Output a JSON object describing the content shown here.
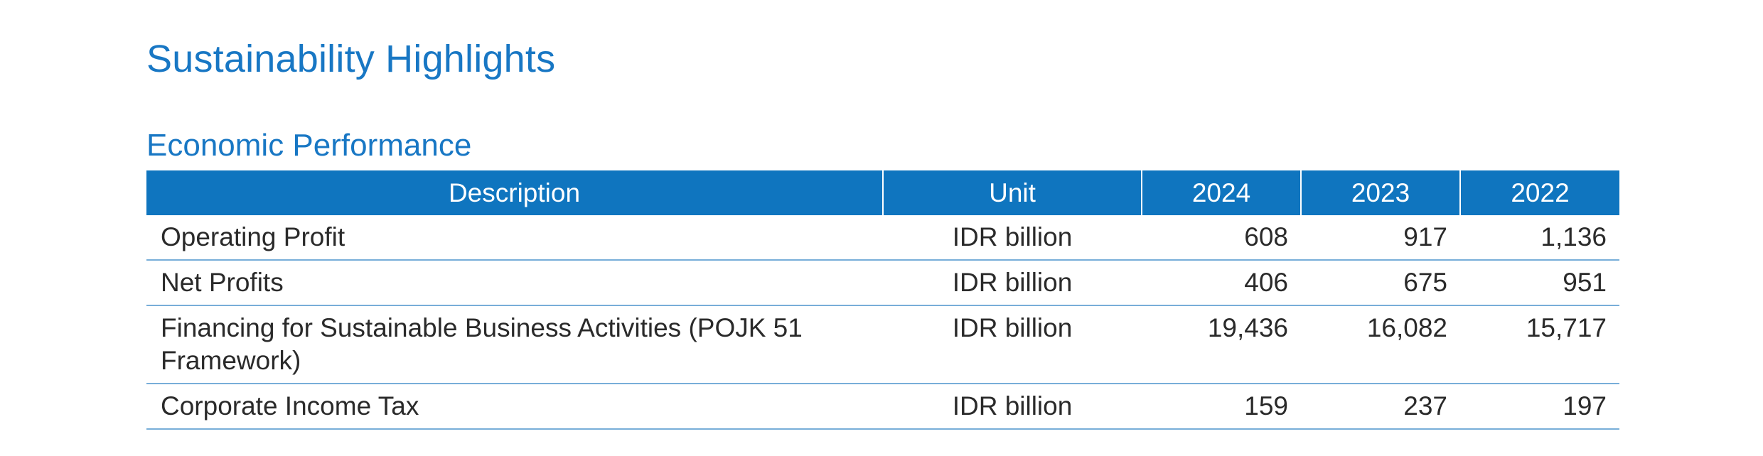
{
  "page_title": "Sustainability Highlights",
  "section_title": "Economic Performance",
  "table": {
    "headers": [
      "Description",
      "Unit",
      "2024",
      "2023",
      "2022"
    ],
    "rows": [
      {
        "description": "Operating Profit",
        "unit": "IDR billion",
        "y2024": "608",
        "y2023": "917",
        "y2022": "1,136"
      },
      {
        "description": "Net Profits",
        "unit": "IDR billion",
        "y2024": "406",
        "y2023": "675",
        "y2022": "951"
      },
      {
        "description": "Financing for Sustainable Business Activities (POJK 51 Framework)",
        "unit": "IDR billion",
        "y2024": "19,436",
        "y2023": "16,082",
        "y2022": "15,717"
      },
      {
        "description": "Corporate Income Tax",
        "unit": "IDR billion",
        "y2024": "159",
        "y2023": "237",
        "y2022": "197"
      }
    ]
  },
  "colors": {
    "heading": "#1877c4",
    "header_bg": "#0f75bf",
    "rule": "#78aed9"
  }
}
